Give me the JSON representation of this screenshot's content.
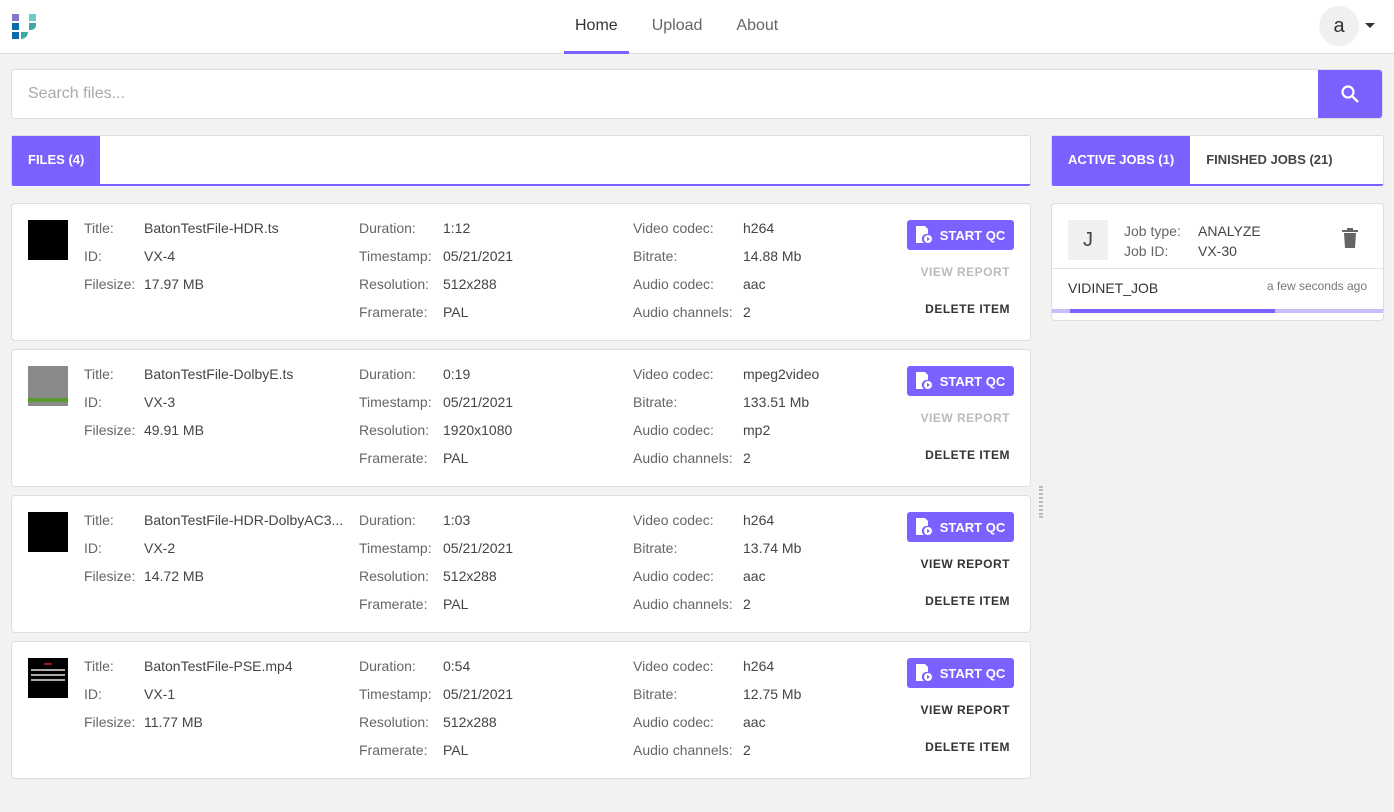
{
  "nav": {
    "items": [
      "Home",
      "Upload",
      "About"
    ],
    "active": "Home"
  },
  "user": {
    "avatar_letter": "a"
  },
  "search": {
    "placeholder": "Search files..."
  },
  "files_tab": "FILES (4)",
  "jobs_tabs": [
    "ACTIVE JOBS (1)",
    "FINISHED JOBS (21)"
  ],
  "accent": "#7b61ff",
  "labels": {
    "title": "Title:",
    "id": "ID:",
    "filesize": "Filesize:",
    "duration": "Duration:",
    "timestamp": "Timestamp:",
    "resolution": "Resolution:",
    "framerate": "Framerate:",
    "vcodec": "Video codec:",
    "bitrate": "Bitrate:",
    "acodec": "Audio codec:",
    "achannels": "Audio channels:"
  },
  "actions": {
    "start_qc": "START QC",
    "view_report": "VIEW REPORT",
    "delete_item": "DELETE ITEM"
  },
  "files": [
    {
      "title": "BatonTestFile-HDR.ts",
      "id": "VX-4",
      "filesize": "17.97 MB",
      "duration": "1:12",
      "timestamp": "05/21/2021",
      "resolution": "512x288",
      "framerate": "PAL",
      "vcodec": "h264",
      "bitrate": "14.88 Mb",
      "acodec": "aac",
      "achannels": "2",
      "report_enabled": false,
      "thumb": "black"
    },
    {
      "title": "BatonTestFile-DolbyE.ts",
      "id": "VX-3",
      "filesize": "49.91 MB",
      "duration": "0:19",
      "timestamp": "05/21/2021",
      "resolution": "1920x1080",
      "framerate": "PAL",
      "vcodec": "mpeg2video",
      "bitrate": "133.51 Mb",
      "acodec": "mp2",
      "achannels": "2",
      "report_enabled": false,
      "thumb": "gray"
    },
    {
      "title": "BatonTestFile-HDR-DolbyAC3...",
      "id": "VX-2",
      "filesize": "14.72 MB",
      "duration": "1:03",
      "timestamp": "05/21/2021",
      "resolution": "512x288",
      "framerate": "PAL",
      "vcodec": "h264",
      "bitrate": "13.74 Mb",
      "acodec": "aac",
      "achannels": "2",
      "report_enabled": true,
      "thumb": "black"
    },
    {
      "title": "BatonTestFile-PSE.mp4",
      "id": "VX-1",
      "filesize": "11.77 MB",
      "duration": "0:54",
      "timestamp": "05/21/2021",
      "resolution": "512x288",
      "framerate": "PAL",
      "vcodec": "h264",
      "bitrate": "12.75 Mb",
      "acodec": "aac",
      "achannels": "2",
      "report_enabled": true,
      "thumb": "warning"
    }
  ],
  "job": {
    "avatar": "J",
    "type_label": "Job type:",
    "type": "ANALYZE",
    "id_label": "Job ID:",
    "id": "VX-30",
    "name": "VIDINET_JOB",
    "time": "a few seconds ago",
    "progress_pct": 62
  }
}
